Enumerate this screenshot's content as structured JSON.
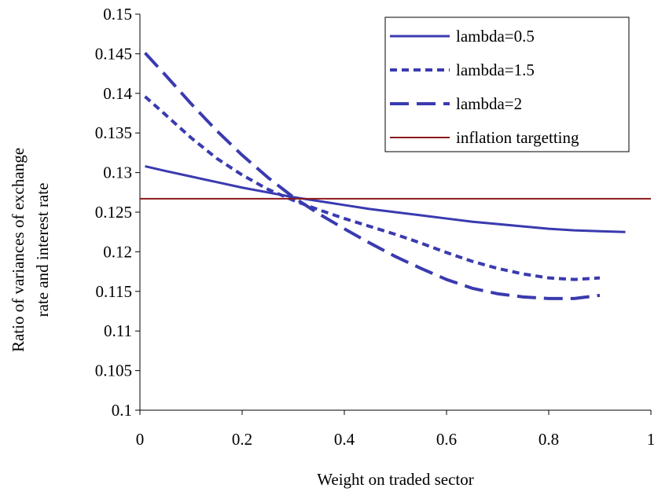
{
  "chart_data": {
    "type": "line",
    "title": "",
    "xlabel": "Weight on traded sector",
    "ylabel_lines": [
      "Ratio of variances of exchange",
      "rate and interest rate"
    ],
    "xlim": [
      0,
      1
    ],
    "ylim": [
      0.1,
      0.15
    ],
    "x_ticks": [
      "0",
      "0.2",
      "0.4",
      "0.6",
      "0.8",
      "1"
    ],
    "y_ticks": [
      "0.1",
      "0.105",
      "0.11",
      "0.115",
      "0.12",
      "0.125",
      "0.13",
      "0.135",
      "0.14",
      "0.145",
      "0.15"
    ],
    "grid": false,
    "legend_position": "top-right",
    "series": [
      {
        "name": "lambda=0.5",
        "style": "solid",
        "color": "#3a3ab0",
        "x": [
          0.01,
          0.05,
          0.1,
          0.15,
          0.2,
          0.25,
          0.3,
          0.35,
          0.4,
          0.45,
          0.5,
          0.55,
          0.6,
          0.65,
          0.7,
          0.75,
          0.8,
          0.85,
          0.9,
          0.95
        ],
        "y": [
          0.1308,
          0.1302,
          0.1295,
          0.1288,
          0.1281,
          0.1275,
          0.1269,
          0.1264,
          0.1259,
          0.1254,
          0.125,
          0.1246,
          0.1242,
          0.1238,
          0.1235,
          0.1232,
          0.1229,
          0.1227,
          0.1226,
          0.1225
        ]
      },
      {
        "name": "lambda=1.5",
        "style": "dotted",
        "color": "#3a3ab0",
        "x": [
          0.01,
          0.05,
          0.1,
          0.15,
          0.2,
          0.25,
          0.3,
          0.35,
          0.4,
          0.45,
          0.5,
          0.55,
          0.6,
          0.65,
          0.7,
          0.75,
          0.8,
          0.85,
          0.9
        ],
        "y": [
          0.1396,
          0.1373,
          0.1344,
          0.1318,
          0.1297,
          0.1279,
          0.1265,
          0.1253,
          0.1242,
          0.1232,
          0.1222,
          0.1211,
          0.1199,
          0.1188,
          0.1179,
          0.1172,
          0.1167,
          0.1165,
          0.1167
        ]
      },
      {
        "name": "lambda=2",
        "style": "dashed",
        "color": "#3a3ab0",
        "x": [
          0.01,
          0.05,
          0.1,
          0.15,
          0.2,
          0.25,
          0.3,
          0.35,
          0.4,
          0.45,
          0.5,
          0.55,
          0.6,
          0.65,
          0.7,
          0.75,
          0.8,
          0.85,
          0.9
        ],
        "y": [
          0.1451,
          0.1423,
          0.1387,
          0.1353,
          0.1322,
          0.1294,
          0.1269,
          0.1248,
          0.1229,
          0.1211,
          0.1194,
          0.1179,
          0.1165,
          0.1154,
          0.1147,
          0.1143,
          0.1141,
          0.1141,
          0.1145
        ]
      },
      {
        "name": "inflation targetting",
        "style": "solid-thin",
        "color": "#8b1a1a",
        "x": [
          0,
          1
        ],
        "y": [
          0.1267,
          0.1267
        ]
      }
    ]
  }
}
